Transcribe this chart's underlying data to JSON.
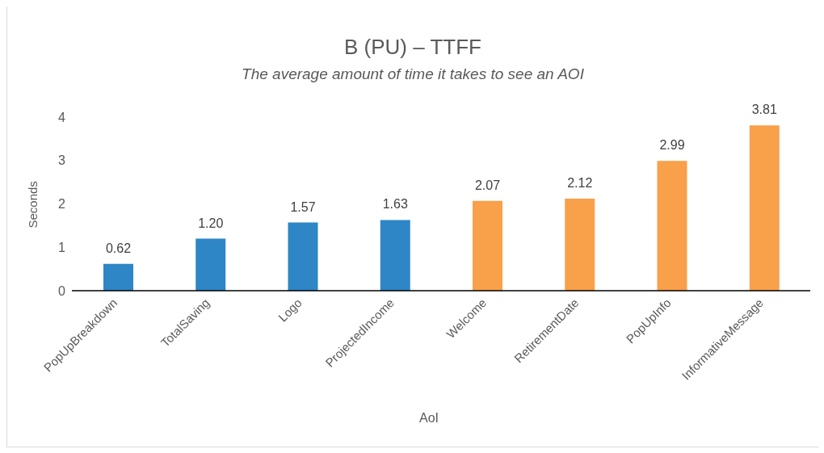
{
  "chart_data": {
    "type": "bar",
    "title": "B (PU) – TTFF",
    "subtitle": "The average amount of time it takes to see an AOI",
    "xlabel": "AoI",
    "ylabel": "Seconds",
    "categories": [
      "PopUpBreakdown",
      "TotalSaving",
      "Logo",
      "ProjectedIncome",
      "Welcome",
      "RetirementDate",
      "PopUpInfo",
      "InformativeMessage"
    ],
    "values": [
      0.62,
      1.2,
      1.57,
      1.63,
      2.07,
      2.12,
      2.99,
      3.81
    ],
    "value_labels": [
      "0.62",
      "1.20",
      "1.57",
      "1.63",
      "2.07",
      "2.12",
      "2.99",
      "3.81"
    ],
    "colors": [
      "#2e86c6",
      "#2e86c6",
      "#2e86c6",
      "#2e86c6",
      "#f9a04a",
      "#f9a04a",
      "#f9a04a",
      "#f9a04a"
    ],
    "ylim": [
      0,
      4
    ],
    "yticks": [
      0,
      1,
      2,
      3,
      4
    ]
  }
}
